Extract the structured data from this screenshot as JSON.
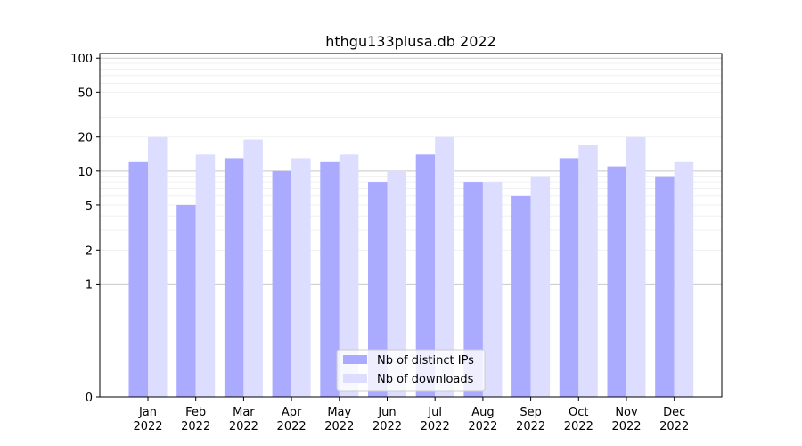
{
  "chart_data": {
    "type": "bar",
    "title": "hthgu133plusa.db 2022",
    "xlabel": "",
    "ylabel": "",
    "y_scale": "symlog",
    "ylim": [
      0,
      110
    ],
    "y_ticks": [
      0,
      1,
      2,
      5,
      10,
      20,
      50,
      100
    ],
    "grid": true,
    "legend_position": "bottom-center",
    "categories": [
      [
        "Jan",
        "2022"
      ],
      [
        "Feb",
        "2022"
      ],
      [
        "Mar",
        "2022"
      ],
      [
        "Apr",
        "2022"
      ],
      [
        "May",
        "2022"
      ],
      [
        "Jun",
        "2022"
      ],
      [
        "Jul",
        "2022"
      ],
      [
        "Aug",
        "2022"
      ],
      [
        "Sep",
        "2022"
      ],
      [
        "Oct",
        "2022"
      ],
      [
        "Nov",
        "2022"
      ],
      [
        "Dec",
        "2022"
      ]
    ],
    "series": [
      {
        "name": "Nb of distinct IPs",
        "color": "#aaaaff",
        "values": [
          12,
          5,
          13,
          10,
          12,
          8,
          14,
          8,
          6,
          13,
          11,
          9
        ]
      },
      {
        "name": "Nb of downloads",
        "color": "#ddddff",
        "values": [
          20,
          14,
          19,
          13,
          14,
          10,
          20,
          8,
          9,
          17,
          20,
          12
        ]
      }
    ]
  }
}
